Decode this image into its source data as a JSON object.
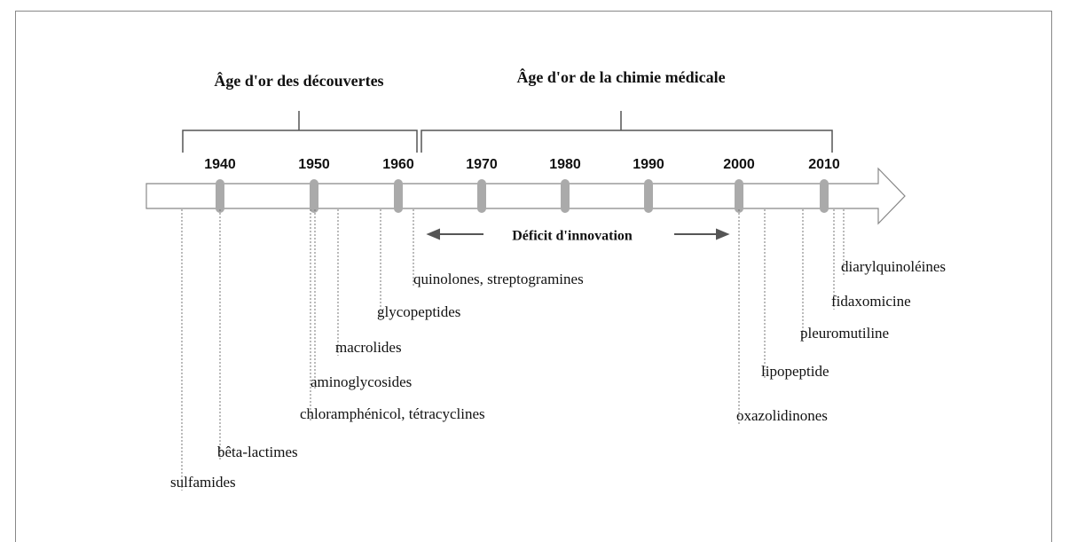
{
  "periods": [
    {
      "label": "Âge d'or des découvertes"
    },
    {
      "label": "Âge d'or de la chimie médicale"
    }
  ],
  "years": [
    "1940",
    "1950",
    "1960",
    "1970",
    "1980",
    "1990",
    "2000",
    "2010"
  ],
  "deficit": "Déficit d'innovation",
  "discoveries": [
    "sulfamides",
    "bêta-lactimes",
    "chloramphénicol, tétracyclines",
    "aminoglycosides",
    "macrolides",
    "glycopeptides",
    "quinolones, streptogramines",
    "oxazolidinones",
    "lipopeptide",
    "pleuromutiline",
    "fidaxomicine",
    "diarylquinoléines"
  ]
}
